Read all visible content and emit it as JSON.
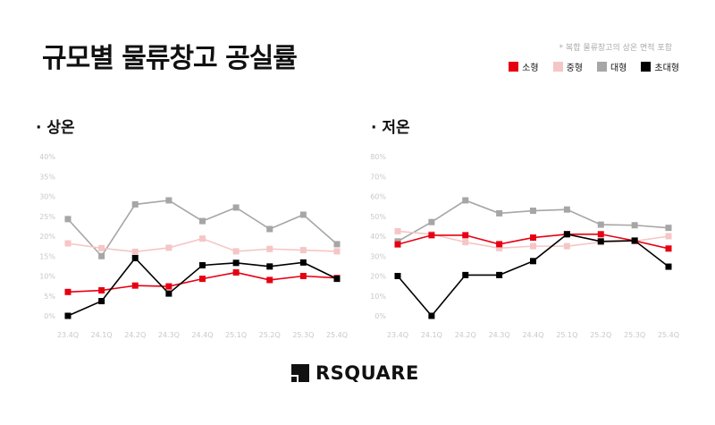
{
  "header": {
    "title": "규모별 물류창고 공실률",
    "note": "* 복합 물류창고의 상온 면적 포함"
  },
  "legend": [
    {
      "name": "소형",
      "color": "#e60012"
    },
    {
      "name": "중형",
      "color": "#f5c6c6"
    },
    {
      "name": "대형",
      "color": "#a6a6a6"
    },
    {
      "name": "초대형",
      "color": "#000000"
    }
  ],
  "logo": {
    "text": "RSQUARE"
  },
  "chart_data": [
    {
      "type": "line",
      "title": "· 상온",
      "categories": [
        "23.4Q",
        "24.1Q",
        "24.2Q",
        "24.3Q",
        "24.4Q",
        "25.1Q",
        "25.2Q",
        "25.3Q",
        "25.4Q"
      ],
      "ylim": [
        0,
        40
      ],
      "yticks": [
        "0%",
        "5%",
        "10%",
        "15%",
        "20%",
        "25%",
        "30%",
        "35%",
        "40%"
      ],
      "grid": false,
      "marker": "square",
      "series": [
        {
          "name": "대형",
          "values": [
            24.3,
            15.0,
            28.0,
            29.0,
            23.8,
            27.2,
            21.8,
            25.4,
            18.0
          ]
        },
        {
          "name": "중형",
          "values": [
            18.2,
            17.0,
            16.1,
            17.1,
            19.4,
            16.2,
            16.8,
            16.5,
            16.2
          ]
        },
        {
          "name": "소형",
          "values": [
            6.0,
            6.4,
            7.6,
            7.4,
            9.3,
            10.9,
            9.0,
            10.0,
            9.5
          ]
        },
        {
          "name": "초대형",
          "values": [
            0.0,
            3.7,
            14.5,
            5.6,
            12.7,
            13.3,
            12.4,
            13.4,
            9.3
          ]
        }
      ]
    },
    {
      "type": "line",
      "title": "· 저온",
      "categories": [
        "23.4Q",
        "24.1Q",
        "24.2Q",
        "24.3Q",
        "24.4Q",
        "25.1Q",
        "25.2Q",
        "25.3Q",
        "25.4Q"
      ],
      "ylim": [
        0,
        80
      ],
      "yticks": [
        "0%",
        "10%",
        "20%",
        "30%",
        "40%",
        "50%",
        "60%",
        "70%",
        "80%"
      ],
      "grid": false,
      "marker": "square",
      "series": [
        {
          "name": "대형",
          "values": [
            37.4,
            47.1,
            58.0,
            51.5,
            52.8,
            53.4,
            45.8,
            45.5,
            44.2
          ]
        },
        {
          "name": "중형",
          "values": [
            42.5,
            41.0,
            37.0,
            34.0,
            35.0,
            35.0,
            37.0,
            37.5,
            40.0
          ]
        },
        {
          "name": "소형",
          "values": [
            35.9,
            40.5,
            40.5,
            36.0,
            39.3,
            41.0,
            41.0,
            37.7,
            33.8
          ]
        },
        {
          "name": "초대형",
          "values": [
            20.0,
            0.0,
            20.5,
            20.5,
            27.5,
            41.0,
            37.4,
            37.8,
            24.7
          ]
        }
      ]
    }
  ]
}
